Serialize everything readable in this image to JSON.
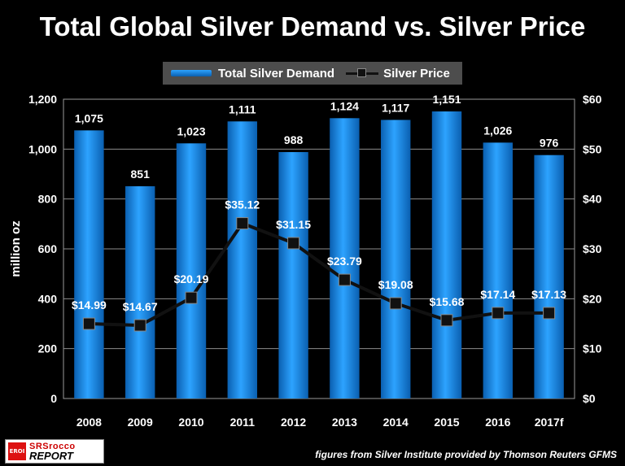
{
  "title": "Total Global Silver Demand vs. Silver Price",
  "legend": {
    "demand_label": "Total Silver Demand",
    "price_label": "Silver Price"
  },
  "source_note": "figures from Silver Institute provided by Thomson Reuters GFMS",
  "logo": {
    "badge": "EROI",
    "line1": "SRSrocco",
    "line2": "REPORT"
  },
  "colors": {
    "background": "#000000",
    "bar_top": "#2da3ff",
    "bar_bottom": "#0a5fb0",
    "line": "#111111",
    "grid": "#8c8c8c"
  },
  "chart_data": {
    "type": "bar",
    "categories": [
      "2008",
      "2009",
      "2010",
      "2011",
      "2012",
      "2013",
      "2014",
      "2015",
      "2016",
      "2017f"
    ],
    "series": [
      {
        "name": "Total Silver Demand",
        "type": "bar",
        "axis": "left",
        "values": [
          1075,
          851,
          1023,
          1111,
          988,
          1124,
          1117,
          1151,
          1026,
          976
        ],
        "labels": [
          "1,075",
          "851",
          "1,023",
          "1,111",
          "988",
          "1,124",
          "1,117",
          "1,151",
          "1,026",
          "976"
        ]
      },
      {
        "name": "Silver Price",
        "type": "line",
        "axis": "right",
        "values": [
          14.99,
          14.67,
          20.19,
          35.12,
          31.15,
          23.79,
          19.08,
          15.68,
          17.14,
          17.13
        ],
        "labels": [
          "$14.99",
          "$14.67",
          "$20.19",
          "$35.12",
          "$31.15",
          "$23.79",
          "$19.08",
          "$15.68",
          "$17.14",
          "$17.13"
        ]
      }
    ],
    "ylabel": "million oz",
    "ylim": [
      0,
      1200
    ],
    "y_ticks": [
      "0",
      "200",
      "400",
      "600",
      "800",
      "1,000",
      "1,200"
    ],
    "y2lim": [
      0,
      60
    ],
    "y2_ticks": [
      "$0",
      "$10",
      "$20",
      "$30",
      "$40",
      "$50",
      "$60"
    ],
    "grid": true,
    "legend_position": "top-center"
  }
}
